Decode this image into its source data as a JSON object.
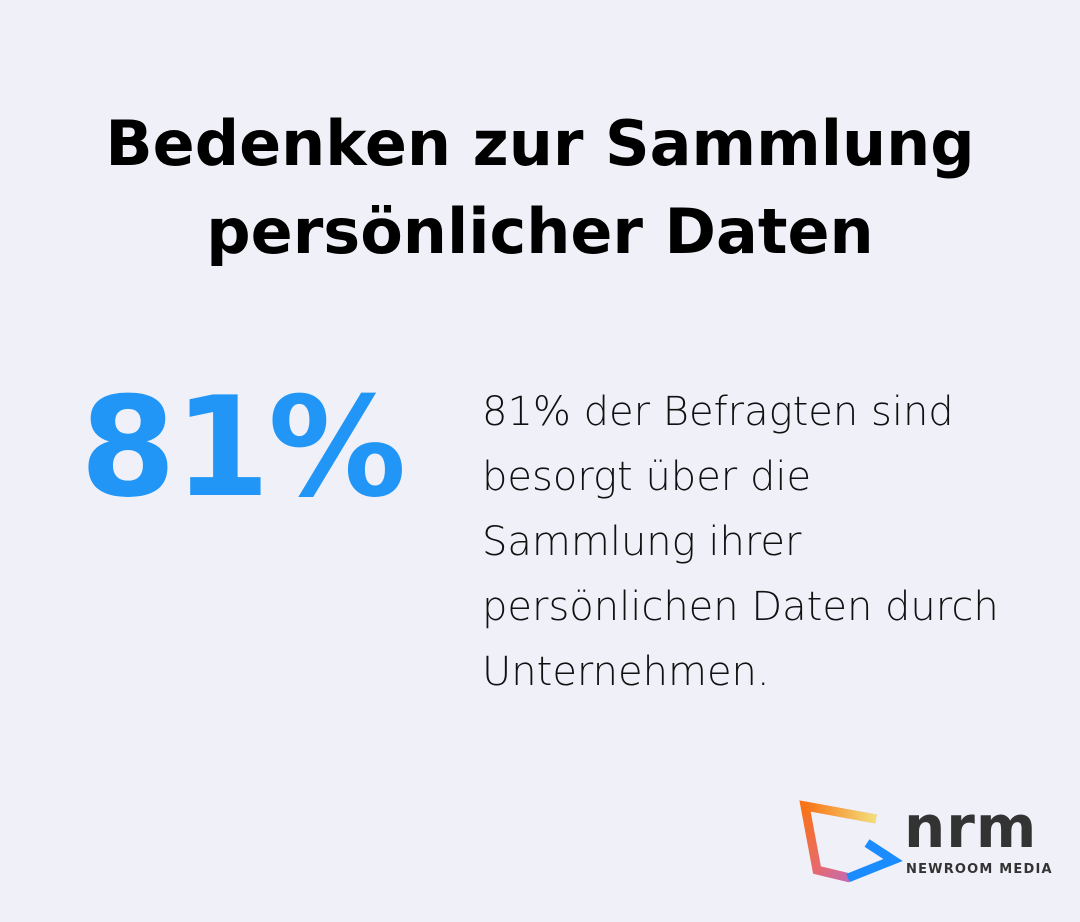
{
  "title": {
    "line1": "Bedenken zur Sammlung",
    "line2": "persönlicher Daten"
  },
  "stat": {
    "value": "81%",
    "description": "81% der Befragten sind besorgt über die Sammlung ihrer persönlichen Daten durch Unternehmen."
  },
  "logo": {
    "name": "nrm",
    "subtitle": "NEWROOM MEDIA"
  },
  "colors": {
    "background": "#f0f0f8",
    "accent": "#2196f7",
    "text": "#000000"
  }
}
